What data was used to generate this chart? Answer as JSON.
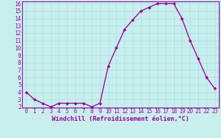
{
  "x": [
    0,
    1,
    2,
    3,
    4,
    5,
    6,
    7,
    8,
    9,
    10,
    11,
    12,
    13,
    14,
    15,
    16,
    17,
    18,
    19,
    20,
    21,
    22,
    23
  ],
  "y": [
    4,
    3,
    2.5,
    2,
    2.5,
    2.5,
    2.5,
    2.5,
    2,
    2.5,
    7.5,
    10,
    12.5,
    13.8,
    15,
    15.5,
    16,
    16,
    16,
    14,
    11,
    8.5,
    6,
    4.5
  ],
  "line_color": "#990099",
  "marker": "D",
  "marker_size": 2,
  "bg_color": "#c8eeee",
  "grid_color": "#a8dddd",
  "xlabel": "Windchill (Refroidissement éolien,°C)",
  "xlabel_color": "#990099",
  "tick_color": "#990099",
  "ylim": [
    2,
    16
  ],
  "xlim": [
    -0.5,
    23.5
  ],
  "yticks": [
    2,
    3,
    4,
    5,
    6,
    7,
    8,
    9,
    10,
    11,
    12,
    13,
    14,
    15,
    16
  ],
  "xticks": [
    0,
    1,
    2,
    3,
    4,
    5,
    6,
    7,
    8,
    9,
    10,
    11,
    12,
    13,
    14,
    15,
    16,
    17,
    18,
    19,
    20,
    21,
    22,
    23
  ],
  "axis_spine_color": "#990099",
  "line_width": 1.0,
  "tick_fontsize": 5.5,
  "xlabel_fontsize": 6.5
}
